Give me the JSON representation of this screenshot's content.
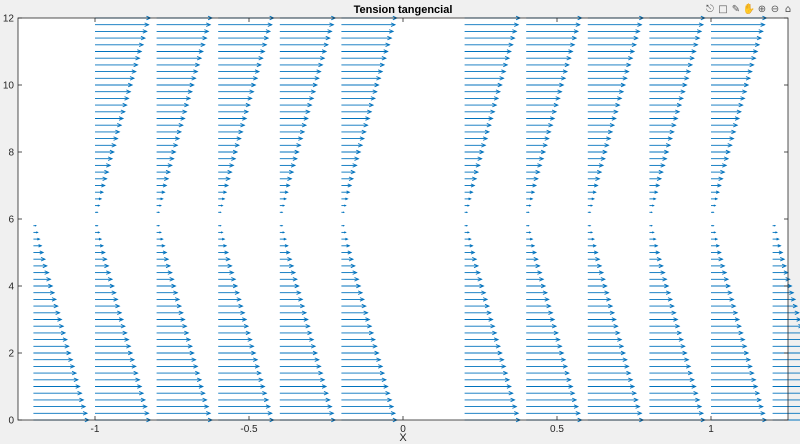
{
  "toolbar": {
    "icons": [
      "export-icon",
      "data-tips-icon",
      "brush-icon",
      "pan-icon",
      "zoom-in-icon",
      "zoom-out-icon",
      "home-icon"
    ]
  },
  "colors": {
    "series": "#0072BD",
    "axes": "#262626",
    "background": "#f0f0f0",
    "plot_background": "#ffffff"
  },
  "chart_data": {
    "type": "quiver",
    "title": "Tension tangencial",
    "xlabel": "X",
    "ylabel": "",
    "xlim": [
      -1.25,
      1.25
    ],
    "ylim": [
      0,
      12
    ],
    "xticks": [
      -1,
      -0.5,
      0,
      0.5,
      1
    ],
    "xtick_labels": [
      "-1",
      "-0.5",
      "0",
      "0.5",
      "1"
    ],
    "yticks": [
      0,
      2,
      4,
      6,
      8,
      10,
      12
    ],
    "ytick_labels": [
      "0",
      "2",
      "4",
      "6",
      "8",
      "10",
      "12"
    ],
    "grid": false,
    "row_spacing": 0.2,
    "bands": [
      {
        "y_range": [
          0,
          5.8
        ],
        "x_origins": [
          -1.2,
          -1.0,
          -0.8,
          -0.6,
          -0.4,
          -0.2,
          0.2,
          0.4,
          0.6,
          0.8,
          1.0,
          1.2
        ],
        "max_vector": 0.18,
        "min_vector": 0.008
      },
      {
        "y_range": [
          6.2,
          12
        ],
        "x_origins": [
          -1.0,
          -0.8,
          -0.6,
          -0.4,
          -0.2,
          0.2,
          0.4,
          0.6,
          0.8,
          1.0
        ],
        "max_vector": 0.18,
        "min_vector": 0.008
      }
    ]
  }
}
